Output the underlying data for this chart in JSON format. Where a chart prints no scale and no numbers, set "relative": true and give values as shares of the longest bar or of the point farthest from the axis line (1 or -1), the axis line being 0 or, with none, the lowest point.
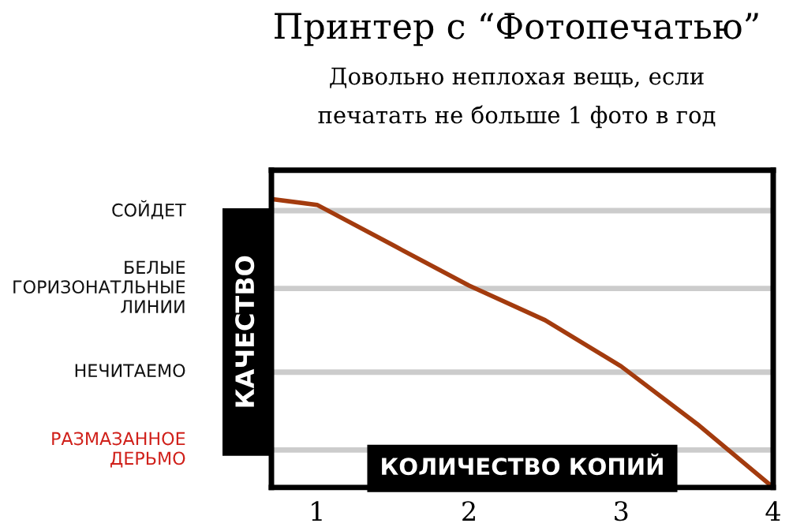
{
  "chart_data": {
    "type": "line",
    "title": "Принтер с “Фотопечатью”",
    "subtitle": "Довольно неплохая вещь, если\nпечатать не больше 1 фото в год",
    "xlabel": "КОЛИЧЕСТВО КОПИЙ",
    "ylabel": "КАЧЕСТВО",
    "relative": true,
    "x": [
      0.7,
      1,
      1.5,
      2,
      2.5,
      3,
      3.5,
      4
    ],
    "series": [
      {
        "color": "#a33b0e",
        "values": [
          1,
          0.98,
          0.84,
          0.7,
          0.58,
          0.42,
          0.22,
          0
        ]
      }
    ],
    "xlim": [
      0.7,
      4
    ],
    "xticks": [
      1,
      2,
      3,
      4
    ],
    "ref_lines": [
      {
        "axis": "y",
        "value": 0.13,
        "color": "#cccccc"
      },
      {
        "axis": "y",
        "value": 0.4,
        "color": "#cccccc"
      },
      {
        "axis": "y",
        "value": 0.69,
        "color": "#cccccc"
      },
      {
        "axis": "y",
        "value": 0.96,
        "color": "#cccccc"
      }
    ],
    "annotations": [
      "РАЗМАЗАННОЕ\nДЕРЬМО",
      "НЕЧИТАЕМО",
      "БЕЛЫЕ\nГОРИЗОНАТЛЬНЫЕ\nЛИНИИ",
      "СОЙДЕТ"
    ],
    "legend": false,
    "marker": "none",
    "line_style": "solid"
  }
}
